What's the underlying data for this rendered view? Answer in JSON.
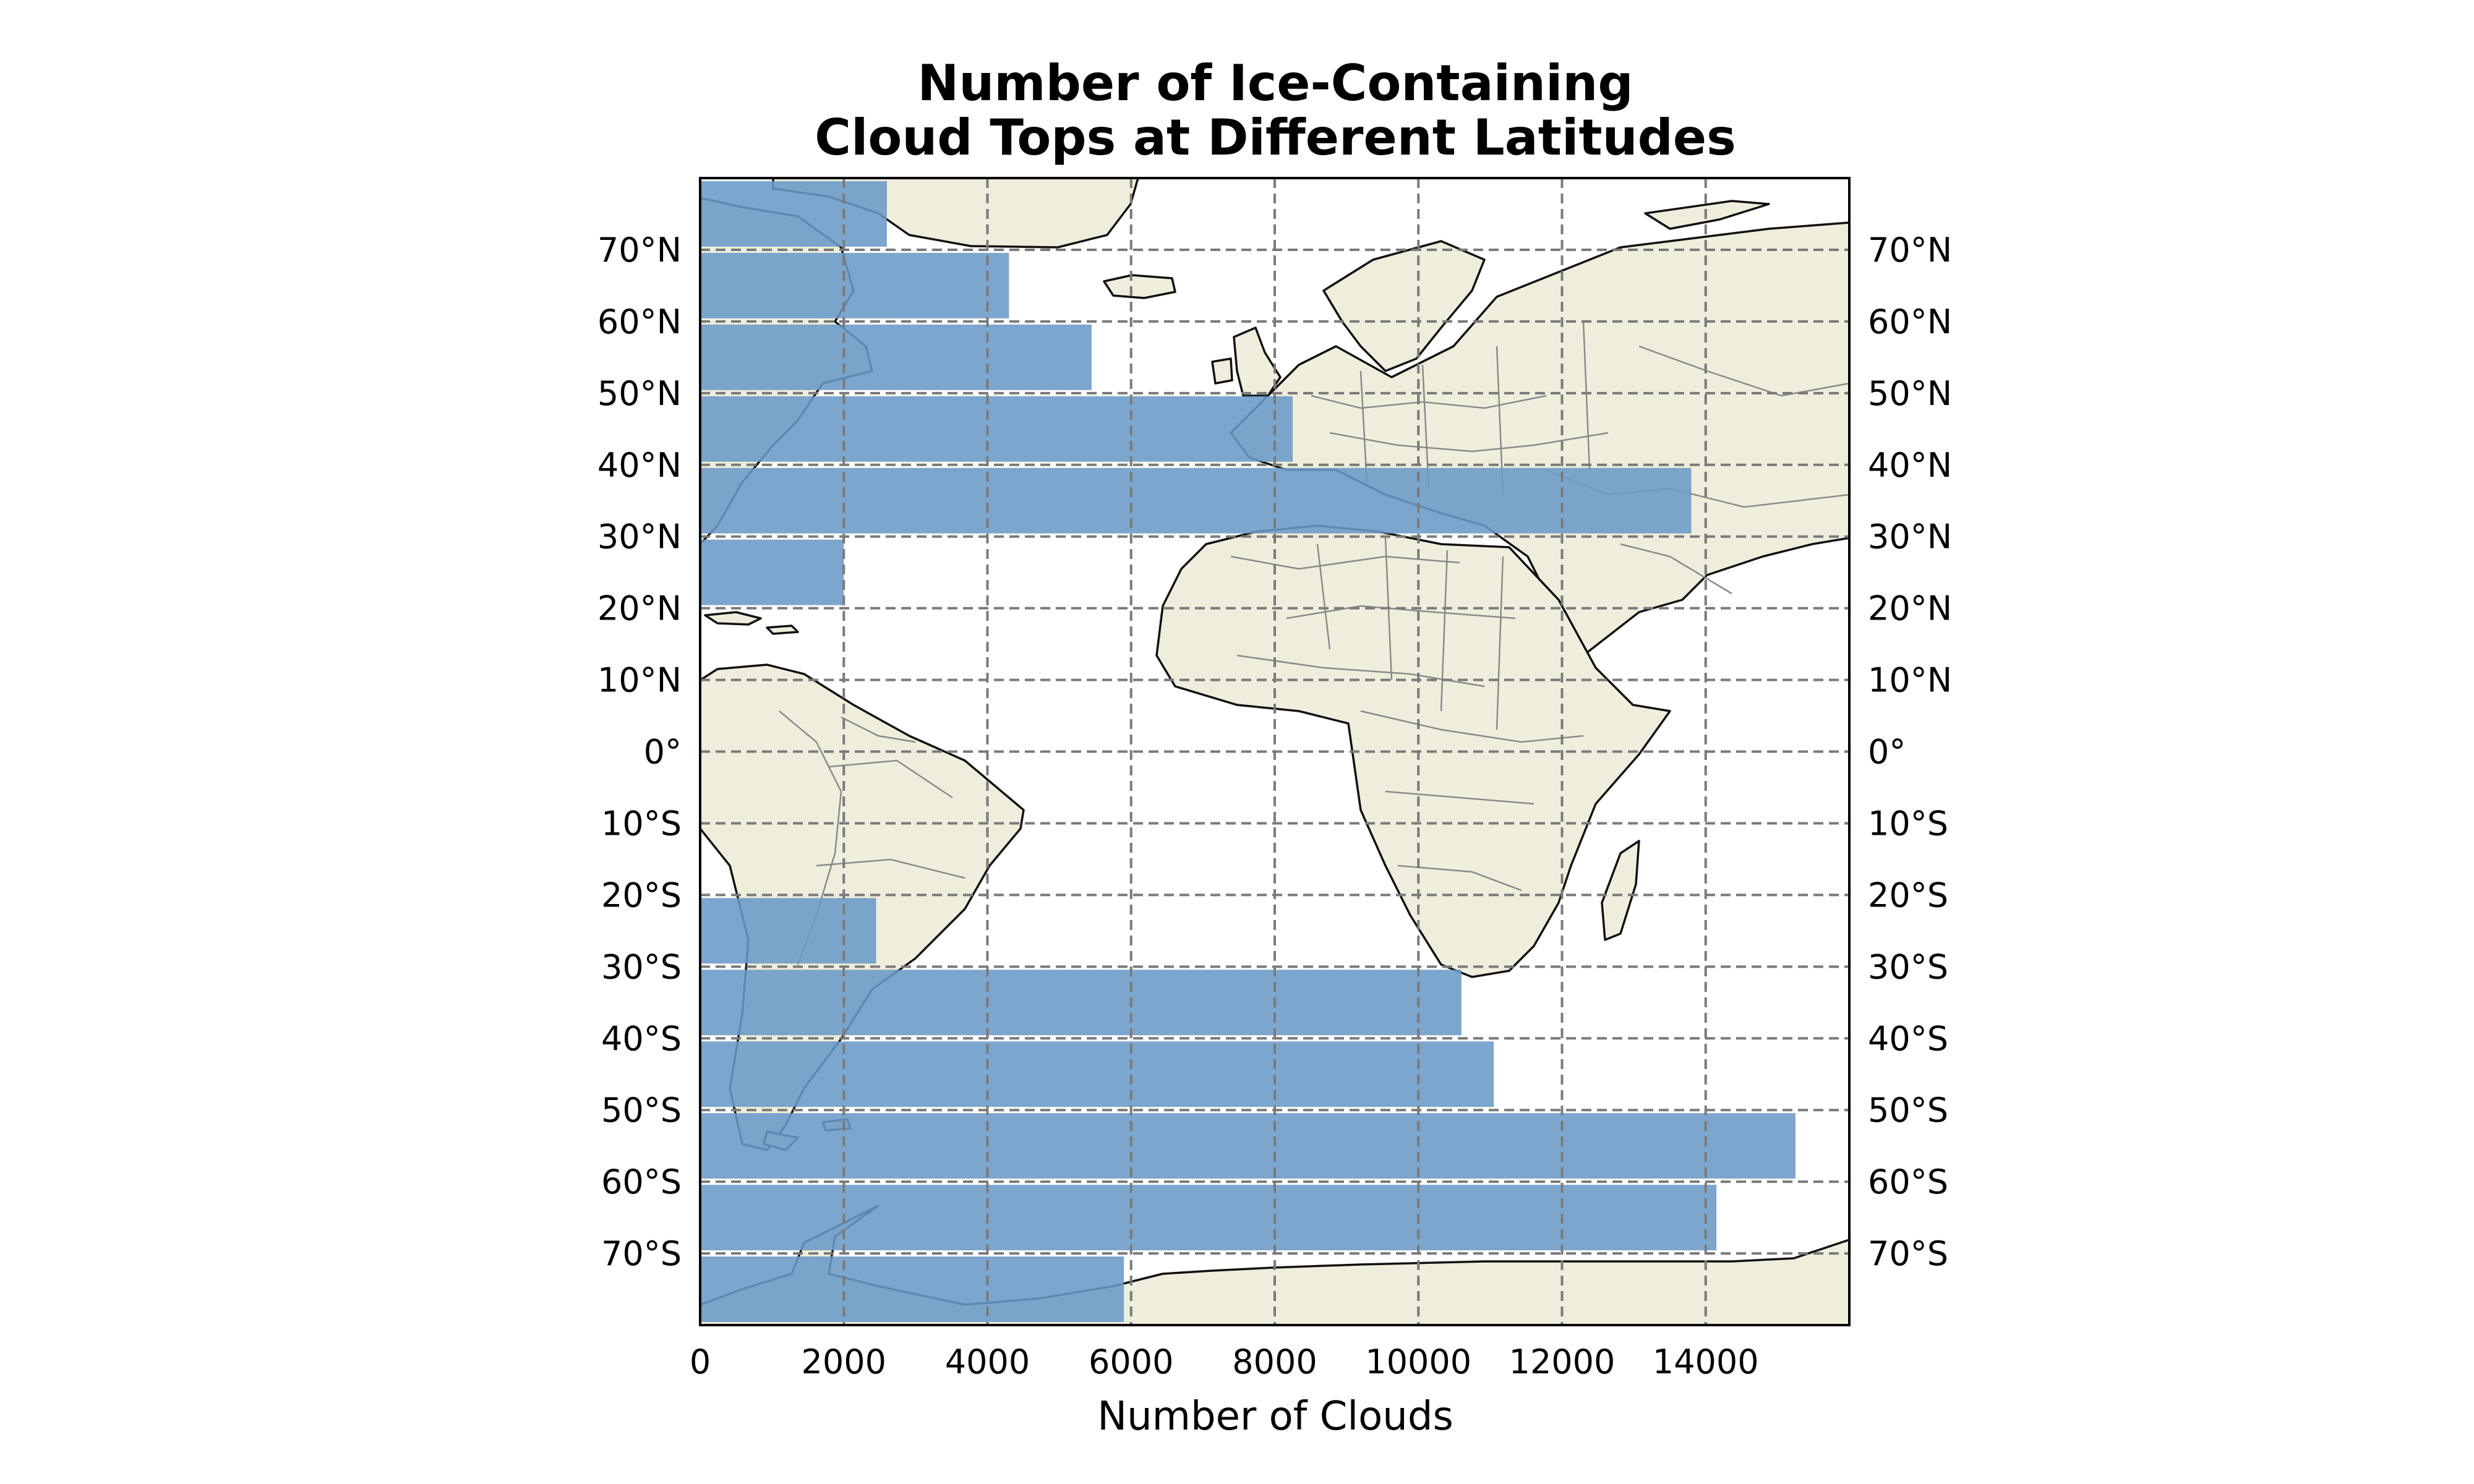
{
  "chart_data": {
    "type": "bar",
    "orientation": "horizontal",
    "title": [
      "Number of Ice-Containing",
      "Cloud Tops at Different Latitudes"
    ],
    "xlabel": "Number of Clouds",
    "ylabel": "",
    "xlim": [
      0,
      16000
    ],
    "ylim": [
      -80,
      80
    ],
    "grid": true,
    "xticks": [
      {
        "value": 0,
        "label": "0"
      },
      {
        "value": 2000,
        "label": "2000"
      },
      {
        "value": 4000,
        "label": "4000"
      },
      {
        "value": 6000,
        "label": "6000"
      },
      {
        "value": 8000,
        "label": "8000"
      },
      {
        "value": 10000,
        "label": "10000"
      },
      {
        "value": 12000,
        "label": "12000"
      },
      {
        "value": 14000,
        "label": "14000"
      }
    ],
    "yticks": [
      {
        "value": 70,
        "label": "70°N"
      },
      {
        "value": 60,
        "label": "60°N"
      },
      {
        "value": 50,
        "label": "50°N"
      },
      {
        "value": 40,
        "label": "40°N"
      },
      {
        "value": 30,
        "label": "30°N"
      },
      {
        "value": 20,
        "label": "20°N"
      },
      {
        "value": 10,
        "label": "10°N"
      },
      {
        "value": 0,
        "label": "0°"
      },
      {
        "value": -10,
        "label": "10°S"
      },
      {
        "value": -20,
        "label": "20°S"
      },
      {
        "value": -30,
        "label": "30°S"
      },
      {
        "value": -40,
        "label": "40°S"
      },
      {
        "value": -50,
        "label": "50°S"
      },
      {
        "value": -60,
        "label": "60°S"
      },
      {
        "value": -70,
        "label": "70°S"
      }
    ],
    "bars": [
      {
        "lat_from": 70,
        "lat_to": 80,
        "value": 2600
      },
      {
        "lat_from": 60,
        "lat_to": 70,
        "value": 4300
      },
      {
        "lat_from": 50,
        "lat_to": 60,
        "value": 5450
      },
      {
        "lat_from": 40,
        "lat_to": 50,
        "value": 8250
      },
      {
        "lat_from": 30,
        "lat_to": 40,
        "value": 13800
      },
      {
        "lat_from": 20,
        "lat_to": 30,
        "value": 2000
      },
      {
        "lat_from": 10,
        "lat_to": 20,
        "value": 0
      },
      {
        "lat_from": 0,
        "lat_to": 10,
        "value": 0
      },
      {
        "lat_from": -10,
        "lat_to": 0,
        "value": 0
      },
      {
        "lat_from": -20,
        "lat_to": -10,
        "value": 0
      },
      {
        "lat_from": -30,
        "lat_to": -20,
        "value": 2450
      },
      {
        "lat_from": -40,
        "lat_to": -30,
        "value": 10600
      },
      {
        "lat_from": -50,
        "lat_to": -40,
        "value": 11050
      },
      {
        "lat_from": -60,
        "lat_to": -50,
        "value": 15250
      },
      {
        "lat_from": -70,
        "lat_to": -60,
        "value": 14150
      },
      {
        "lat_from": -80,
        "lat_to": -70,
        "value": 5900
      }
    ],
    "basemap": {
      "lon_range": [
        -90,
        70
      ],
      "land_color": "#efeedc",
      "coast_color": "#111111",
      "border_color": "#8a8a8a"
    },
    "colors": {
      "bar": "#6a9ac6",
      "grid": "#7a7a7a",
      "frame": "#000000"
    }
  }
}
